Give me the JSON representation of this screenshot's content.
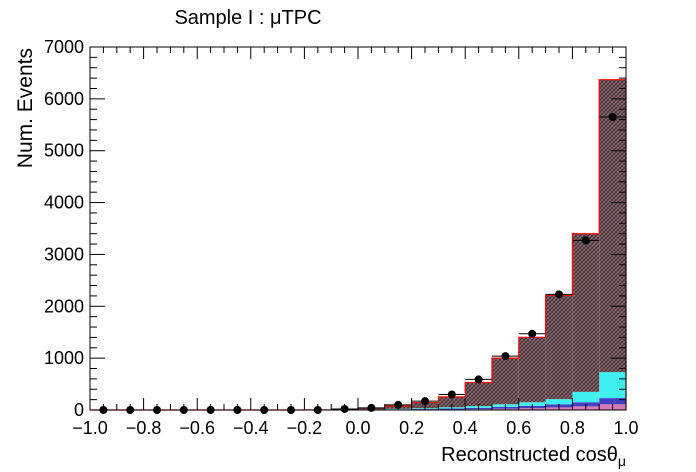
{
  "chart_data": {
    "type": "bar",
    "title": "Sample I : μTPC",
    "xlabel_main": "Reconstructed cos",
    "xlabel_symbol": "θ",
    "xlabel_sub": "μ",
    "ylabel": "Num. Events",
    "xlim": [
      -1.0,
      1.0
    ],
    "ylim": [
      0,
      7000
    ],
    "x_ticks": [
      "−1.0",
      "−0.8",
      "−0.6",
      "−0.4",
      "−0.2",
      "0.0",
      "0.2",
      "0.4",
      "0.6",
      "0.8",
      "1.0"
    ],
    "x_tick_values": [
      -1.0,
      -0.8,
      -0.6,
      -0.4,
      -0.2,
      0.0,
      0.2,
      0.4,
      0.6,
      0.8,
      1.0
    ],
    "y_ticks": [
      "0",
      "1000",
      "2000",
      "3000",
      "4000",
      "5000",
      "6000",
      "7000"
    ],
    "y_tick_values": [
      0,
      1000,
      2000,
      3000,
      4000,
      5000,
      6000,
      7000
    ],
    "bin_edges": [
      -1.0,
      -0.9,
      -0.8,
      -0.7,
      -0.6,
      -0.5,
      -0.4,
      -0.3,
      -0.2,
      -0.1,
      0.0,
      0.1,
      0.2,
      0.3,
      0.4,
      0.5,
      0.6,
      0.7,
      0.8,
      0.9,
      1.0
    ],
    "stack_colors": [
      "#d87ab8",
      "#4040c0",
      "#40f0f0",
      "#8a6a70"
    ],
    "stack": [
      {
        "values": [
          0,
          0,
          0,
          0,
          0,
          0,
          0,
          0,
          0,
          0,
          2,
          4,
          6,
          10,
          15,
          25,
          35,
          50,
          70,
          110
        ]
      },
      {
        "values": [
          0,
          0,
          0,
          0,
          0,
          0,
          0,
          0,
          0,
          2,
          5,
          8,
          12,
          18,
          25,
          35,
          45,
          60,
          80,
          120
        ]
      },
      {
        "values": [
          0,
          0,
          0,
          0,
          0,
          0,
          0,
          0,
          0,
          2,
          5,
          10,
          15,
          25,
          35,
          50,
          70,
          100,
          200,
          500
        ]
      },
      {
        "values": [
          0,
          0,
          0,
          0,
          0,
          0,
          0,
          0,
          3,
          10,
          25,
          55,
          110,
          200,
          455,
          890,
          1250,
          2000,
          3050,
          5640
        ]
      }
    ],
    "total_line_color": "#ff0000",
    "data_points": {
      "x": [
        -0.95,
        -0.85,
        -0.75,
        -0.65,
        -0.55,
        -0.45,
        -0.35,
        -0.25,
        -0.15,
        -0.05,
        0.05,
        0.15,
        0.25,
        0.35,
        0.45,
        0.55,
        0.65,
        0.75,
        0.85,
        0.95
      ],
      "y": [
        0,
        0,
        0,
        0,
        0,
        0,
        0,
        0,
        0,
        20,
        40,
        100,
        170,
        300,
        590,
        1040,
        1470,
        2230,
        3270,
        5650
      ]
    }
  }
}
